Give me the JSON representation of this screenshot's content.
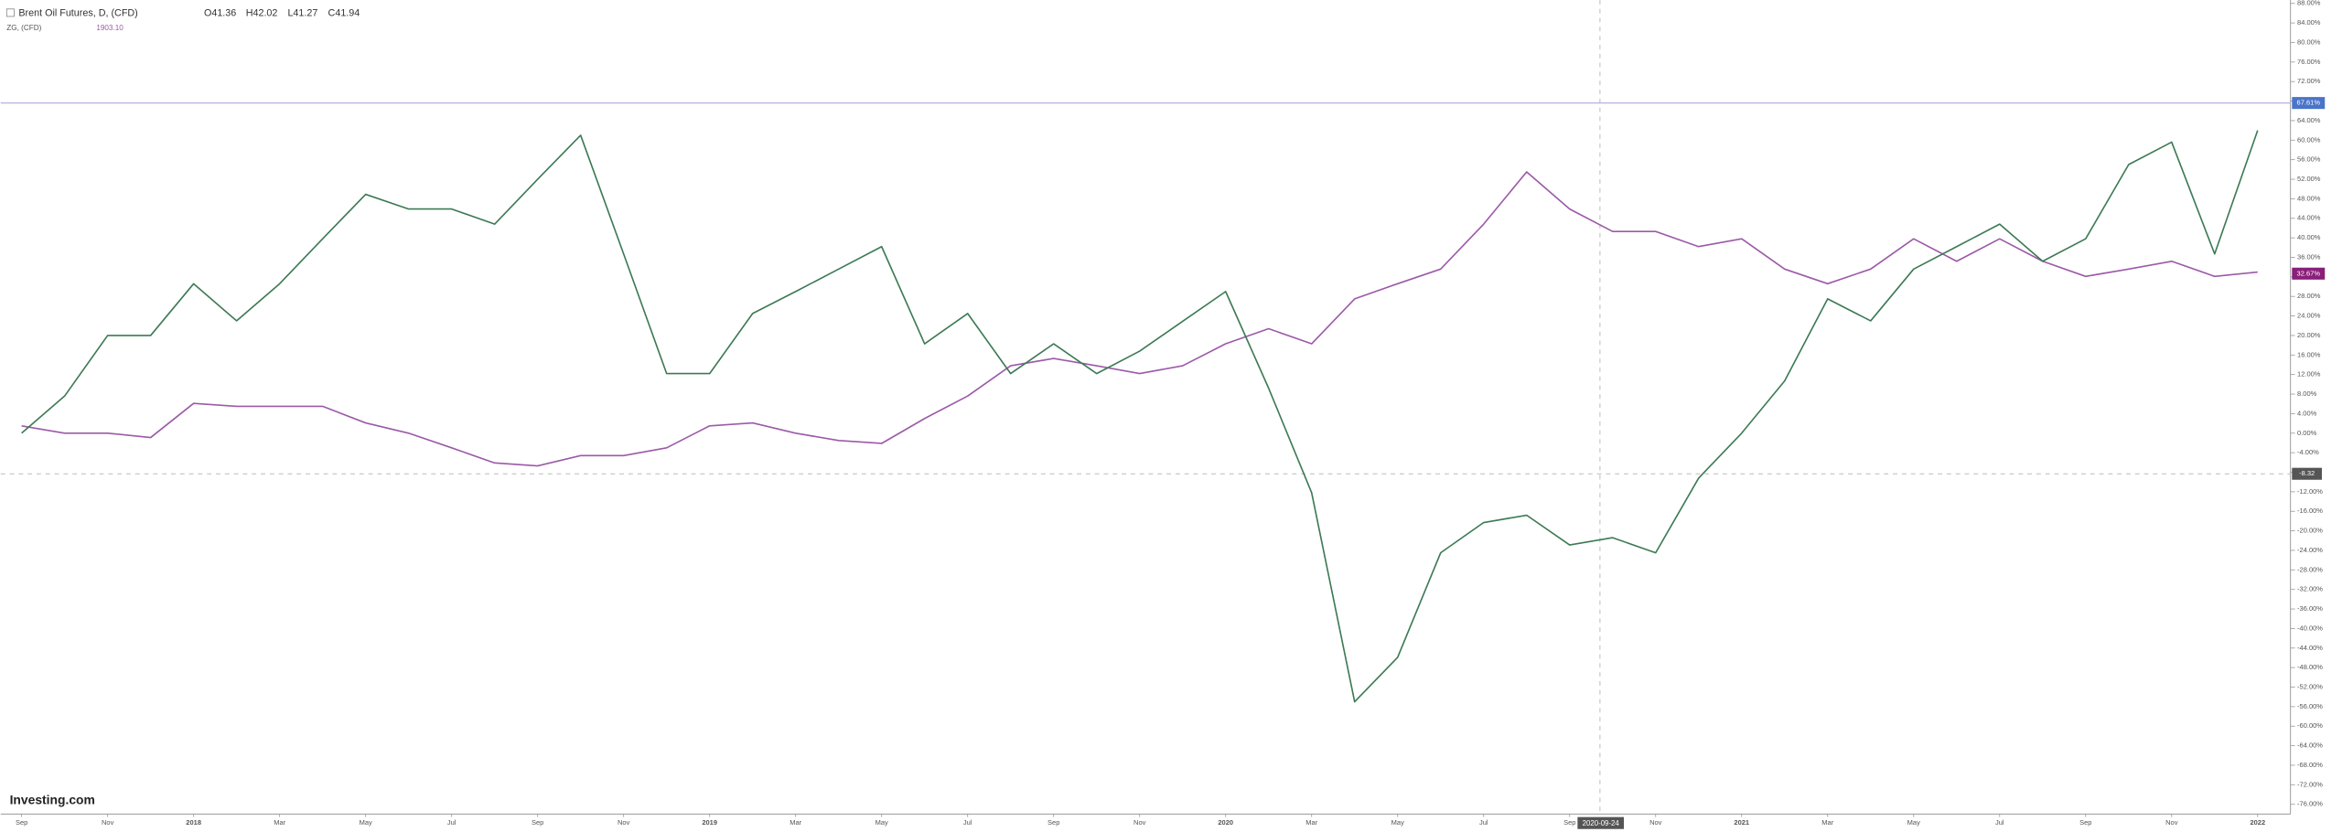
{
  "chart_data": {
    "type": "line",
    "title": "Brent Oil Futures, D, (CFD)",
    "ohlc": [
      "O41.36",
      "H42.02",
      "L41.27",
      "C41.94"
    ],
    "subtitle": "ZG, (CFD)",
    "subtitle_value": "1903.10",
    "watermark": "Investing.com",
    "crosshair_label": "2020-09-24",
    "categories": [
      "Sep",
      null,
      "Nov",
      null,
      "2018",
      null,
      "Mar",
      null,
      "May",
      null,
      "Jul",
      null,
      "Sep",
      null,
      "Nov",
      null,
      "2019",
      null,
      "Mar",
      null,
      "May",
      null,
      "Jul",
      null,
      "Sep",
      null,
      "Nov",
      null,
      "2020",
      null,
      "Mar",
      null,
      "May",
      null,
      "Jul",
      null,
      "Sep",
      null,
      "Nov",
      null,
      "2021",
      null,
      "Mar",
      null,
      "May",
      null,
      "Jul",
      null,
      "Sep",
      null,
      "Nov",
      null,
      "2022"
    ],
    "series": [
      {
        "name": "Brent Oil Futures",
        "color": "#3d7a55",
        "values": [
          0,
          7.6,
          20,
          20,
          30.6,
          23,
          30.6,
          39.8,
          48.9,
          45.9,
          45.9,
          42.8,
          52,
          61,
          36.7,
          12.2,
          12.2,
          24.5,
          29,
          33.6,
          38.2,
          18.3,
          24.5,
          12.2,
          18.3,
          12.2,
          16.8,
          22.9,
          29,
          9.2,
          -12.2,
          -55,
          -45.9,
          -24.5,
          -18.3,
          -16.8,
          -22.9,
          -21.4,
          -24.5,
          -9.2,
          0,
          10.7,
          27.5,
          23,
          33.6,
          38.2,
          42.8,
          35.2,
          39.8,
          55,
          59.6,
          36.7,
          62
        ]
      },
      {
        "name": "ZG",
        "color": "#9c5aa8",
        "values": [
          1.5,
          0,
          0,
          -0.9,
          6.1,
          5.5,
          5.5,
          5.5,
          2.1,
          0,
          -3,
          -6.1,
          -6.7,
          -4.6,
          -4.6,
          -3,
          1.5,
          2.1,
          0,
          -1.5,
          -2.1,
          3,
          7.6,
          13.8,
          15.3,
          13.8,
          12.2,
          13.8,
          18.3,
          21.4,
          18.3,
          27.5,
          30.6,
          33.6,
          42.8,
          53.5,
          45.9,
          41.3,
          41.3,
          38.2,
          39.8,
          33.6,
          30.6,
          33.6,
          39.8,
          35.2,
          39.8,
          35.2,
          32.1,
          33.6,
          35.2,
          32.1,
          33
        ]
      }
    ],
    "last_values": [
      {
        "value": 67.61,
        "label": "67.61%",
        "color": "#4a74c9"
      },
      {
        "value": 32.67,
        "label": "32.67%",
        "color": "#8a1f7a"
      }
    ],
    "crosshair_value": {
      "value": -8.32,
      "label": "-8.32"
    },
    "ylim": [
      -78,
      88.7
    ],
    "yticks": [
      {
        "value": 88,
        "label": "88.00%"
      },
      {
        "value": 84,
        "label": "84.00%"
      },
      {
        "value": 80,
        "label": "80.00%"
      },
      {
        "value": 76,
        "label": "76.00%"
      },
      {
        "value": 72,
        "label": "72.00%"
      },
      {
        "value": 68,
        "label": "68.00%"
      },
      {
        "value": 64,
        "label": "64.00%"
      },
      {
        "value": 60,
        "label": "60.00%"
      },
      {
        "value": 56,
        "label": "56.00%"
      },
      {
        "value": 52,
        "label": "52.00%"
      },
      {
        "value": 48,
        "label": "48.00%"
      },
      {
        "value": 44,
        "label": "44.00%"
      },
      {
        "value": 40,
        "label": "40.00%"
      },
      {
        "value": 36,
        "label": "36.00%"
      },
      {
        "value": 32,
        "label": "32.00%"
      },
      {
        "value": 28,
        "label": "28.00%"
      },
      {
        "value": 24,
        "label": "24.00%"
      },
      {
        "value": 20,
        "label": "20.00%"
      },
      {
        "value": 16,
        "label": "16.00%"
      },
      {
        "value": 12,
        "label": "12.00%"
      },
      {
        "value": 8,
        "label": "8.00%"
      },
      {
        "value": 4,
        "label": "4.00%"
      },
      {
        "value": 0,
        "label": "0.00%"
      },
      {
        "value": -4,
        "label": "-4.00%"
      },
      {
        "value": -8,
        "label": "-8.00%"
      },
      {
        "value": -12,
        "label": "-12.00%"
      },
      {
        "value": -16,
        "label": "-16.00%"
      },
      {
        "value": -20,
        "label": "-20.00%"
      },
      {
        "value": -24,
        "label": "-24.00%"
      },
      {
        "value": -28,
        "label": "-28.00%"
      },
      {
        "value": -32,
        "label": "-32.00%"
      },
      {
        "value": -36,
        "label": "-36.00%"
      },
      {
        "value": -40,
        "label": "-40.00%"
      },
      {
        "value": -44,
        "label": "-44.00%"
      },
      {
        "value": -48,
        "label": "-48.00%"
      },
      {
        "value": -52,
        "label": "-52.00%"
      },
      {
        "value": -56,
        "label": "-56.00%"
      },
      {
        "value": -60,
        "label": "-60.00%"
      },
      {
        "value": -64,
        "label": "-64.00%"
      },
      {
        "value": -68,
        "label": "-68.00%"
      },
      {
        "value": -72,
        "label": "-72.00%"
      },
      {
        "value": -76,
        "label": "-76.00%"
      }
    ],
    "grid": false
  }
}
